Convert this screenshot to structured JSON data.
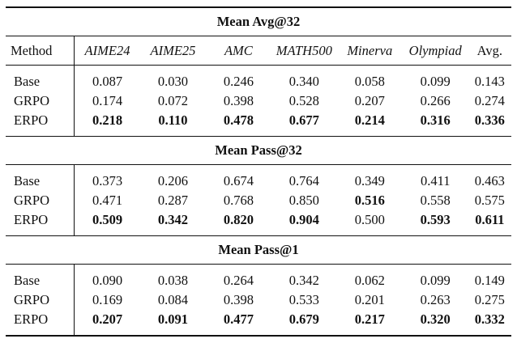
{
  "columns": {
    "method": "Method",
    "datasets": [
      "AIME24",
      "AIME25",
      "AMC",
      "MATH500",
      "Minerva",
      "Olympiad",
      "Avg."
    ]
  },
  "sections": [
    {
      "title": "Mean Avg@32",
      "rows": [
        {
          "method": "Base",
          "values": [
            "0.087",
            "0.030",
            "0.246",
            "0.340",
            "0.058",
            "0.099",
            "0.143"
          ],
          "bold": [
            false,
            false,
            false,
            false,
            false,
            false,
            false
          ]
        },
        {
          "method": "GRPO",
          "values": [
            "0.174",
            "0.072",
            "0.398",
            "0.528",
            "0.207",
            "0.266",
            "0.274"
          ],
          "bold": [
            false,
            false,
            false,
            false,
            false,
            false,
            false
          ]
        },
        {
          "method": "ERPO",
          "values": [
            "0.218",
            "0.110",
            "0.478",
            "0.677",
            "0.214",
            "0.316",
            "0.336"
          ],
          "bold": [
            true,
            true,
            true,
            true,
            true,
            true,
            true
          ]
        }
      ]
    },
    {
      "title": "Mean Pass@32",
      "rows": [
        {
          "method": "Base",
          "values": [
            "0.373",
            "0.206",
            "0.674",
            "0.764",
            "0.349",
            "0.411",
            "0.463"
          ],
          "bold": [
            false,
            false,
            false,
            false,
            false,
            false,
            false
          ]
        },
        {
          "method": "GRPO",
          "values": [
            "0.471",
            "0.287",
            "0.768",
            "0.850",
            "0.516",
            "0.558",
            "0.575"
          ],
          "bold": [
            false,
            false,
            false,
            false,
            true,
            false,
            false
          ]
        },
        {
          "method": "ERPO",
          "values": [
            "0.509",
            "0.342",
            "0.820",
            "0.904",
            "0.500",
            "0.593",
            "0.611"
          ],
          "bold": [
            true,
            true,
            true,
            true,
            false,
            true,
            true
          ]
        }
      ]
    },
    {
      "title": "Mean Pass@1",
      "rows": [
        {
          "method": "Base",
          "values": [
            "0.090",
            "0.038",
            "0.264",
            "0.342",
            "0.062",
            "0.099",
            "0.149"
          ],
          "bold": [
            false,
            false,
            false,
            false,
            false,
            false,
            false
          ]
        },
        {
          "method": "GRPO",
          "values": [
            "0.169",
            "0.084",
            "0.398",
            "0.533",
            "0.201",
            "0.263",
            "0.275"
          ],
          "bold": [
            false,
            false,
            false,
            false,
            false,
            false,
            false
          ]
        },
        {
          "method": "ERPO",
          "values": [
            "0.207",
            "0.091",
            "0.477",
            "0.679",
            "0.217",
            "0.320",
            "0.332"
          ],
          "bold": [
            true,
            true,
            true,
            true,
            true,
            true,
            true
          ]
        }
      ]
    }
  ]
}
